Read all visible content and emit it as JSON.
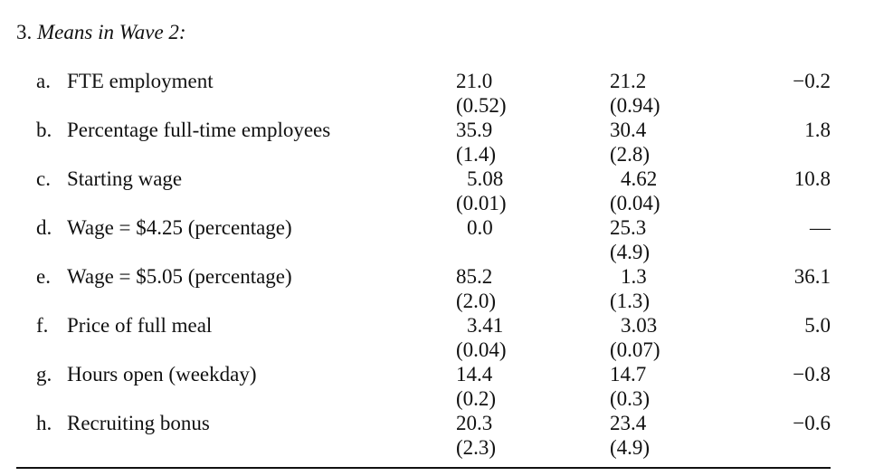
{
  "section": {
    "number": "3.",
    "title": "Means in Wave 2:"
  },
  "rows": [
    {
      "letter": "a.",
      "label": "FTE employment",
      "col1": "21.0",
      "col1_se": "(0.52)",
      "col2": "21.2",
      "col2_se": "(0.94)",
      "col3": "−0.2"
    },
    {
      "letter": "b.",
      "label": "Percentage full-time employees",
      "col1": "35.9",
      "col1_se": "(1.4)",
      "col2": "30.4",
      "col2_se": "(2.8)",
      "col3": "1.8"
    },
    {
      "letter": "c.",
      "label": "Starting wage",
      "col1": "5.08",
      "col1_se": "(0.01)",
      "col2": "4.62",
      "col2_se": "(0.04)",
      "col3": "10.8"
    },
    {
      "letter": "d.",
      "label": "Wage = $4.25 (percentage)",
      "col1": "0.0",
      "col1_se": "",
      "col2": "25.3",
      "col2_se": "(4.9)",
      "col3": "—"
    },
    {
      "letter": "e.",
      "label": "Wage = $5.05 (percentage)",
      "col1": "85.2",
      "col1_se": "(2.0)",
      "col2": "1.3",
      "col2_se": "(1.3)",
      "col3": "36.1"
    },
    {
      "letter": "f.",
      "label": "Price of full meal",
      "col1": "3.41",
      "col1_se": "(0.04)",
      "col2": "3.03",
      "col2_se": "(0.07)",
      "col3": "5.0"
    },
    {
      "letter": "g.",
      "label": "Hours open (weekday)",
      "col1": "14.4",
      "col1_se": "(0.2)",
      "col2": "14.7",
      "col2_se": "(0.3)",
      "col3": "−0.8"
    },
    {
      "letter": "h.",
      "label": "Recruiting bonus",
      "col1": "20.3",
      "col1_se": "(2.3)",
      "col2": "23.4",
      "col2_se": "(4.9)",
      "col3": "−0.6"
    }
  ]
}
